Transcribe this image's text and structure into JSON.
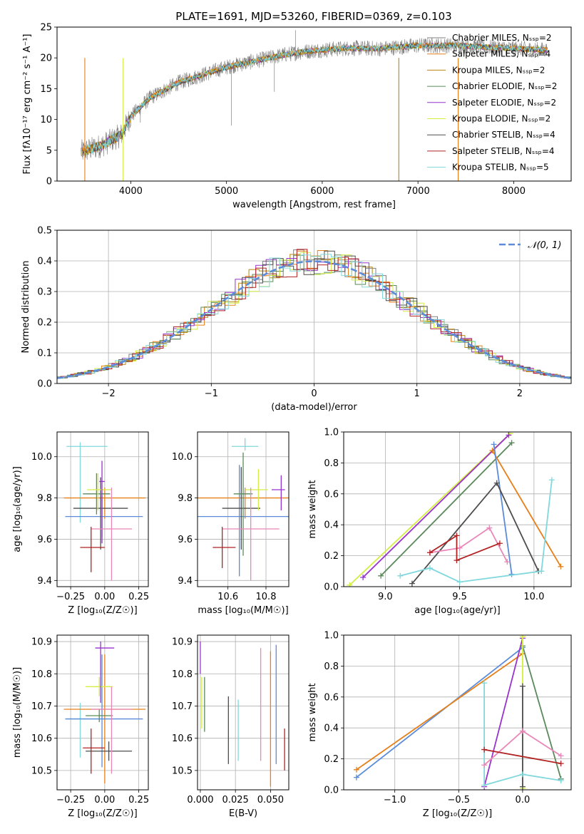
{
  "figure_title": "PLATE=1691, MJD=53260, FIBERID=0369, z=0.103",
  "colors": {
    "chabrier_miles": "#808080",
    "salpeter_miles": "#e6801a",
    "kroupa_miles": "#b8860b",
    "chabrier_elodie": "#5a8a5a",
    "salpeter_elodie": "#9932cc",
    "kroupa_elodie": "#d4ee44",
    "chabrier_stelib": "#4d4d4d",
    "salpeter_stelib": "#b22222",
    "kroupa_stelib": "#80d8dc",
    "blue": "#5b8bd9",
    "pink": "#e887b8",
    "orange": "#e6801a"
  },
  "chart_data": [
    {
      "id": "spectrum",
      "type": "line",
      "xlabel": "wavelength [Angstrom, rest frame]",
      "ylabel": "Flux [fλ10⁻¹⁷ erg cm⁻² s⁻¹ A⁻¹]",
      "xlim": [
        3230,
        8600
      ],
      "ylim": [
        0,
        25
      ],
      "xticks": [
        4000,
        5000,
        6000,
        7000,
        8000
      ],
      "yticks": [
        0,
        5,
        10,
        15,
        20,
        25
      ],
      "grid": false,
      "legend_position": "right",
      "continuum": {
        "x": [
          3500,
          3700,
          3900,
          4000,
          4200,
          4500,
          4800,
          5000,
          5300,
          5600,
          5800,
          6000,
          6300,
          6600,
          7000,
          7400,
          7800,
          8300
        ],
        "y": [
          4.8,
          5.8,
          7.5,
          10.5,
          13.5,
          16,
          17.5,
          18.5,
          19.5,
          20.5,
          21,
          21.3,
          21.6,
          21.5,
          22,
          22,
          21.7,
          21.3
        ]
      },
      "series": [
        {
          "name": "Chabrier MILES, N_SSP=2",
          "color_key": "chabrier_miles"
        },
        {
          "name": "Salpeter MILES, N_SSP=4",
          "color_key": "salpeter_miles"
        },
        {
          "name": "Kroupa MILES, N_SSP=2",
          "color_key": "kroupa_miles"
        },
        {
          "name": "Chabrier ELODIE, N_SSP=2",
          "color_key": "chabrier_elodie"
        },
        {
          "name": "Salpeter ELODIE, N_SSP=2",
          "color_key": "salpeter_elodie"
        },
        {
          "name": "Kroupa ELODIE, N_SSP=2",
          "color_key": "kroupa_elodie"
        },
        {
          "name": "Chabrier STELIB, N_SSP=4",
          "color_key": "chabrier_stelib"
        },
        {
          "name": "Salpeter STELIB, N_SSP=4",
          "color_key": "salpeter_stelib"
        },
        {
          "name": "Kroupa STELIB, N_SSP=5",
          "color_key": "kroupa_stelib"
        }
      ]
    },
    {
      "id": "residuals",
      "type": "line",
      "xlabel": "(data-model)/error",
      "ylabel": "Normed distribution",
      "xlim": [
        -2.5,
        2.5
      ],
      "ylim": [
        0,
        0.5
      ],
      "xticks": [
        -2,
        -1,
        0,
        1,
        2
      ],
      "yticks": [
        0.0,
        0.1,
        0.2,
        0.3,
        0.4,
        0.5
      ],
      "grid": true,
      "legend_position": "top-right",
      "gauss_label": "𝒩(0, 1)"
    },
    {
      "id": "age_vs_Z",
      "type": "scatter",
      "xlabel": "Z [log₁₀(Z/Z☉)]",
      "ylabel": "age  [log₁₀(age/yr)]",
      "xlim": [
        -0.35,
        0.32
      ],
      "ylim": [
        9.37,
        10.12
      ],
      "xticks": [
        -0.25,
        0.0,
        0.25
      ],
      "yticks": [
        9.4,
        9.6,
        9.8,
        10.0
      ],
      "grid": true,
      "points": [
        {
          "x": -0.18,
          "y": 10.05,
          "xerr": [
            0.1,
            0.2
          ],
          "yerr": [
            0.37,
            0.02
          ],
          "color_key": "kroupa_stelib"
        },
        {
          "x": 0.0,
          "y": 9.8,
          "xerr": [
            0.3,
            0.3
          ],
          "yerr": [
            0.1,
            0.05
          ],
          "color_key": "orange"
        },
        {
          "x": -0.02,
          "y": 9.71,
          "xerr": [
            0.27,
            0.3
          ],
          "yerr": [
            0.1,
            0.1
          ],
          "color_key": "blue"
        },
        {
          "x": -0.03,
          "y": 9.75,
          "xerr": [
            0.2,
            0.2
          ],
          "yerr": [
            0.2,
            0.15
          ],
          "color_key": "chabrier_stelib"
        },
        {
          "x": -0.06,
          "y": 9.82,
          "xerr": [
            0.1,
            0.1
          ],
          "yerr": [
            0.1,
            0.1
          ],
          "color_key": "chabrier_elodie"
        },
        {
          "x": -0.05,
          "y": 9.84,
          "xerr": [
            0.08,
            0.1
          ],
          "yerr": [
            0.1,
            0.08
          ],
          "color_key": "kroupa_elodie"
        },
        {
          "x": -0.02,
          "y": 9.88,
          "xerr": [
            0.02,
            0.02
          ],
          "yerr": [
            0.3,
            0.1
          ],
          "color_key": "salpeter_elodie"
        },
        {
          "x": 0.05,
          "y": 9.65,
          "xerr": [
            0.15,
            0.15
          ],
          "yerr": [
            0.25,
            0.2
          ],
          "color_key": "pink"
        },
        {
          "x": -0.1,
          "y": 9.56,
          "xerr": [
            0.08,
            0.1
          ],
          "yerr": [
            0.12,
            0.1
          ],
          "color_key": "salpeter_stelib"
        }
      ]
    },
    {
      "id": "age_vs_mass",
      "type": "scatter",
      "xlabel": "mass [log₁₀(M/M☉)]",
      "ylabel": "",
      "xlim": [
        10.44,
        10.92
      ],
      "ylim": [
        9.37,
        10.12
      ],
      "xticks": [
        10.6,
        10.8
      ],
      "yticks": [
        9.4,
        9.6,
        9.8,
        10.0
      ],
      "grid": true,
      "points": [
        {
          "x": 10.69,
          "y": 10.05,
          "xerr": [
            0.07,
            0.07
          ],
          "yerr": [
            0.02,
            0.04
          ],
          "color_key": "kroupa_stelib"
        },
        {
          "x": 10.69,
          "y": 9.8,
          "xerr": [
            0.25,
            0.3
          ],
          "yerr": [
            0.1,
            0.05
          ],
          "color_key": "orange"
        },
        {
          "x": 10.66,
          "y": 9.71,
          "xerr": [
            0.3,
            0.3
          ],
          "yerr": [
            0.29,
            0.25
          ],
          "color_key": "blue"
        },
        {
          "x": 10.67,
          "y": 9.75,
          "xerr": [
            0.1,
            0.1
          ],
          "yerr": [
            0.2,
            0.2
          ],
          "color_key": "chabrier_stelib"
        },
        {
          "x": 10.68,
          "y": 9.82,
          "xerr": [
            0.05,
            0.05
          ],
          "yerr": [
            0.3,
            0.2
          ],
          "color_key": "chabrier_elodie"
        },
        {
          "x": 10.76,
          "y": 9.84,
          "xerr": [
            0.07,
            0.05
          ],
          "yerr": [
            0.1,
            0.1
          ],
          "color_key": "kroupa_elodie"
        },
        {
          "x": 10.88,
          "y": 9.84,
          "xerr": [
            0.05,
            0.02
          ],
          "yerr": [
            0.1,
            0.07
          ],
          "color_key": "salpeter_elodie"
        },
        {
          "x": 10.72,
          "y": 9.65,
          "xerr": [
            0.15,
            0.15
          ],
          "yerr": [
            0.25,
            0.2
          ],
          "color_key": "pink"
        },
        {
          "x": 10.57,
          "y": 9.56,
          "xerr": [
            0.05,
            0.07
          ],
          "yerr": [
            0.1,
            0.1
          ],
          "color_key": "salpeter_stelib"
        }
      ]
    },
    {
      "id": "weight_vs_age",
      "type": "line",
      "xlabel": "age  [log₁₀(age/yr)]",
      "ylabel": "mass weight",
      "xlim": [
        8.72,
        10.25
      ],
      "ylim": [
        0,
        1
      ],
      "xticks": [
        9.0,
        9.5,
        10.0
      ],
      "yticks": [
        0.0,
        0.2,
        0.4,
        0.6,
        0.8,
        1.0
      ],
      "grid": true,
      "series": [
        {
          "color_key": "kroupa_elodie",
          "x": [
            8.76,
            9.84
          ],
          "y": [
            0.01,
            0.99
          ]
        },
        {
          "color_key": "salpeter_elodie",
          "x": [
            8.85,
            9.83
          ],
          "y": [
            0.06,
            0.98
          ]
        },
        {
          "color_key": "chabrier_elodie",
          "x": [
            8.97,
            9.85
          ],
          "y": [
            0.07,
            0.93
          ]
        },
        {
          "color_key": "orange",
          "x": [
            9.72,
            10.18
          ],
          "y": [
            0.88,
            0.13
          ]
        },
        {
          "color_key": "blue",
          "x": [
            9.73,
            9.85
          ],
          "y": [
            0.92,
            0.08
          ]
        },
        {
          "color_key": "chabrier_stelib",
          "x": [
            9.18,
            9.75,
            10.03
          ],
          "y": [
            0.02,
            0.67,
            0.1
          ]
        },
        {
          "color_key": "kroupa_stelib",
          "x": [
            9.1,
            9.3,
            9.5,
            10.05,
            10.12
          ],
          "y": [
            0.07,
            0.12,
            0.03,
            0.1,
            0.69
          ]
        },
        {
          "color_key": "pink",
          "x": [
            9.3,
            9.5,
            9.7,
            9.82
          ],
          "y": [
            0.22,
            0.25,
            0.38,
            0.16
          ]
        },
        {
          "color_key": "salpeter_stelib",
          "x": [
            9.3,
            9.48,
            9.48,
            9.77
          ],
          "y": [
            0.22,
            0.33,
            0.17,
            0.28
          ]
        }
      ]
    },
    {
      "id": "mass_vs_Z",
      "type": "scatter",
      "xlabel": "Z [log₁₀(Z/Z☉)]",
      "ylabel": "mass [log₁₀(M/M☉)]",
      "xlim": [
        -0.35,
        0.32
      ],
      "ylim": [
        10.44,
        10.92
      ],
      "xticks": [
        -0.25,
        0.0,
        0.25
      ],
      "yticks": [
        10.5,
        10.6,
        10.7,
        10.8,
        10.9
      ],
      "grid": true,
      "points": [
        {
          "x": -0.18,
          "y": 10.66,
          "xerr": [
            0.1,
            0.2
          ],
          "yerr": [
            0.12,
            0.05
          ],
          "color_key": "kroupa_stelib"
        },
        {
          "x": 0.0,
          "y": 10.69,
          "xerr": [
            0.3,
            0.3
          ],
          "yerr": [
            0.23,
            0.17
          ],
          "color_key": "orange"
        },
        {
          "x": -0.02,
          "y": 10.66,
          "xerr": [
            0.27,
            0.3
          ],
          "yerr": [
            0.15,
            0.2
          ],
          "color_key": "blue"
        },
        {
          "x": 0.03,
          "y": 10.56,
          "xerr": [
            0.17,
            0.17
          ],
          "yerr": [
            0.03,
            0.03
          ],
          "color_key": "chabrier_stelib"
        },
        {
          "x": -0.04,
          "y": 10.67,
          "xerr": [
            0.1,
            0.1
          ],
          "yerr": [
            0.02,
            0.02
          ],
          "color_key": "chabrier_elodie"
        },
        {
          "x": -0.04,
          "y": 10.76,
          "xerr": [
            0.1,
            0.1
          ],
          "yerr": [
            0.03,
            0.03
          ],
          "color_key": "kroupa_elodie"
        },
        {
          "x": -0.03,
          "y": 10.88,
          "xerr": [
            0.04,
            0.1
          ],
          "yerr": [
            0.17,
            0.02
          ],
          "color_key": "salpeter_elodie"
        },
        {
          "x": 0.05,
          "y": 10.69,
          "xerr": [
            0.15,
            0.15
          ],
          "yerr": [
            0.2,
            0.07
          ],
          "color_key": "pink"
        },
        {
          "x": -0.1,
          "y": 10.57,
          "xerr": [
            0.06,
            0.1
          ],
          "yerr": [
            0.08,
            0.06
          ],
          "color_key": "salpeter_stelib"
        }
      ]
    },
    {
      "id": "mass_vs_ebv",
      "type": "scatter",
      "xlabel": "E(B-V)",
      "ylabel": "",
      "xlim": [
        -0.002,
        0.063
      ],
      "ylim": [
        10.44,
        10.92
      ],
      "xticks": [
        0.0,
        0.025,
        0.05
      ],
      "yticks": [
        10.5,
        10.6,
        10.7,
        10.8,
        10.9
      ],
      "grid": true,
      "points": [
        {
          "x": 0.0,
          "y": 10.85,
          "yerr": [
            0.05,
            0.05
          ],
          "color_key": "salpeter_elodie"
        },
        {
          "x": 0.001,
          "y": 10.71,
          "yerr": [
            0.08,
            0.08
          ],
          "color_key": "kroupa_elodie"
        },
        {
          "x": 0.003,
          "y": 10.71,
          "yerr": [
            0.09,
            0.08
          ],
          "color_key": "chabrier_elodie"
        },
        {
          "x": 0.02,
          "y": 10.63,
          "yerr": [
            0.11,
            0.1
          ],
          "color_key": "chabrier_stelib"
        },
        {
          "x": 0.027,
          "y": 10.63,
          "yerr": [
            0.1,
            0.09
          ],
          "color_key": "kroupa_stelib"
        },
        {
          "x": 0.043,
          "y": 10.69,
          "yerr": [
            0.16,
            0.19
          ],
          "color_key": "pink"
        },
        {
          "x": 0.05,
          "y": 10.66,
          "yerr": [
            0.21,
            0.21
          ],
          "color_key": "orange"
        },
        {
          "x": 0.054,
          "y": 10.66,
          "yerr": [
            0.14,
            0.23
          ],
          "color_key": "blue"
        },
        {
          "x": 0.06,
          "y": 10.56,
          "yerr": [
            0.06,
            0.07
          ],
          "color_key": "salpeter_stelib"
        }
      ]
    },
    {
      "id": "weight_vs_Z",
      "type": "line",
      "xlabel": "Z [log₁₀(Z/Z☉)]",
      "ylabel": "mass weight",
      "xlim": [
        -1.4,
        0.38
      ],
      "ylim": [
        0,
        1
      ],
      "xticks": [
        -1.0,
        -0.5,
        0.0
      ],
      "yticks": [
        0.0,
        0.2,
        0.4,
        0.6,
        0.8,
        1.0
      ],
      "grid": true,
      "series": [
        {
          "color_key": "blue",
          "x": [
            -1.3,
            0.0
          ],
          "y": [
            0.08,
            0.92
          ]
        },
        {
          "color_key": "orange",
          "x": [
            -1.3,
            0.0
          ],
          "y": [
            0.13,
            0.88
          ]
        },
        {
          "color_key": "salpeter_elodie",
          "x": [
            -0.3,
            0.0
          ],
          "y": [
            0.02,
            0.98
          ]
        },
        {
          "color_key": "chabrier_elodie",
          "x": [
            0.0,
            0.3
          ],
          "y": [
            0.93,
            0.07
          ]
        },
        {
          "color_key": "kroupa_elodie",
          "x": [
            0.0,
            0.0
          ],
          "y": [
            0.01,
            0.99
          ]
        },
        {
          "color_key": "chabrier_stelib",
          "x": [
            0.0,
            0.0
          ],
          "y": [
            0.02,
            0.67
          ]
        },
        {
          "color_key": "kroupa_stelib",
          "x": [
            -0.3,
            -0.3,
            0.0,
            0.3
          ],
          "y": [
            0.69,
            0.03,
            0.1,
            0.06
          ]
        },
        {
          "color_key": "pink",
          "x": [
            -0.3,
            0.0,
            0.3
          ],
          "y": [
            0.16,
            0.38,
            0.22
          ]
        },
        {
          "color_key": "salpeter_stelib",
          "x": [
            -0.3,
            0.3
          ],
          "y": [
            0.26,
            0.17
          ]
        }
      ]
    }
  ]
}
